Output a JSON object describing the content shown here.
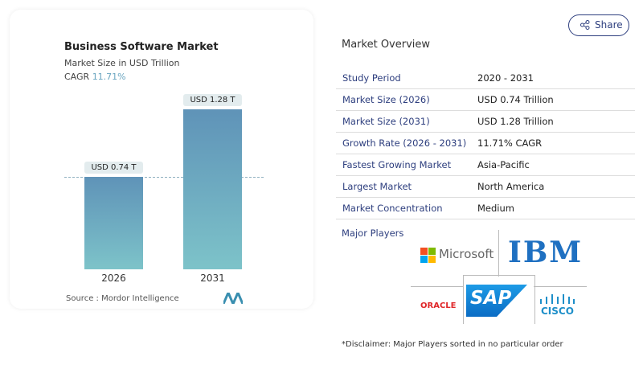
{
  "chart_data": {
    "type": "bar",
    "title": "Business Software Market",
    "subtitle": "Market Size in USD Trillion",
    "cagr_label": "CAGR",
    "cagr_value": "11.71%",
    "categories": [
      "2026",
      "2031"
    ],
    "values": [
      0.74,
      1.28
    ],
    "data_labels": [
      "USD 0.74 T",
      "USD 1.28 T"
    ],
    "ylim": [
      0,
      1.28
    ],
    "reference_line": 0.74,
    "bar_color": "#6aa5c0",
    "source": "Source :  Mordor Intelligence"
  },
  "share": {
    "label": "Share",
    "icon": "share-icon"
  },
  "overview": {
    "title": "Market Overview",
    "rows": [
      {
        "k": "Study Period",
        "v": "2020 - 2031"
      },
      {
        "k": "Market Size (2026)",
        "v": "USD 0.74 Trillion"
      },
      {
        "k": "Market Size (2031)",
        "v": "USD 1.28 Trillion"
      },
      {
        "k": "Growth Rate (2026 - 2031)",
        "v": "11.71% CAGR"
      },
      {
        "k": "Fastest Growing Market",
        "v": "Asia-Pacific"
      },
      {
        "k": "Largest Market",
        "v": "North America"
      },
      {
        "k": "Market Concentration",
        "v": "Medium"
      }
    ]
  },
  "players": {
    "title": "Major Players",
    "logos": [
      "Microsoft",
      "IBM",
      "SAP",
      "ORACLE",
      "CISCO"
    ]
  },
  "disclaimer": "*Disclaimer: Major Players sorted in no particular order"
}
